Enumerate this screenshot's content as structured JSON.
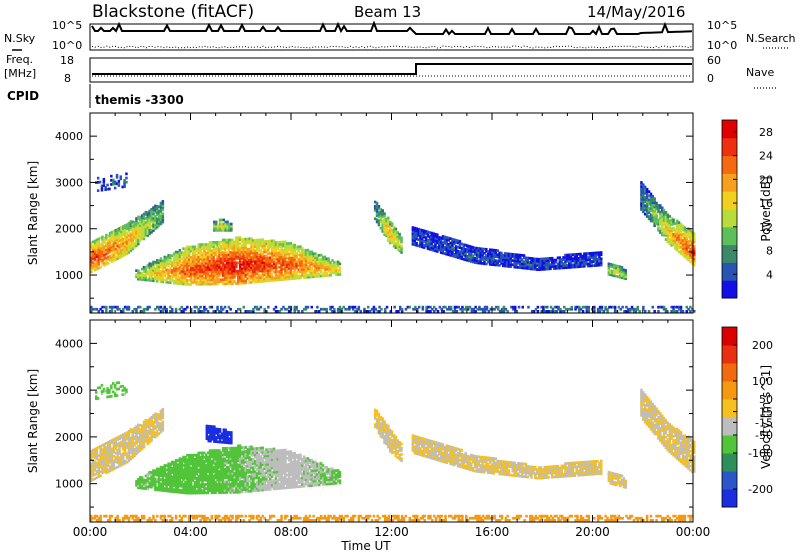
{
  "header": {
    "radar": "Blackstone (fitACF)",
    "beam": "Beam 13",
    "date": "14/May/2016"
  },
  "summary_panels": {
    "nsky_label": "N.Sky",
    "nsearch_label": "N.Search",
    "noise_ticks": [
      "10^5",
      "10^0"
    ],
    "freq_label": "Freq.",
    "freq_unit": "[MHz]",
    "freq_ticks": [
      "18",
      "8"
    ],
    "nave_label": "Nave",
    "nave_ticks": [
      "60",
      "0"
    ],
    "cpid_label": "CPID",
    "cpid_value": "themis -3300"
  },
  "colors": {
    "power_scale": [
      "#1010e6",
      "#2855b4",
      "#3a8a6a",
      "#5cbf5c",
      "#b8dc3c",
      "#f2d020",
      "#f7a020",
      "#f46a10",
      "#ee3010",
      "#e00000"
    ],
    "velocity_scale": [
      "#1a2ee0",
      "#2a56c8",
      "#2f8f5a",
      "#52c43a",
      "#bdbdbd",
      "#f5c020",
      "#f59a10",
      "#f26a10",
      "#e83010",
      "#d80000"
    ]
  },
  "chart_data": [
    {
      "type": "heatmap",
      "name": "power",
      "xlabel": "Time UT",
      "ylabel": "Slant Range [km]",
      "x_ticks": [
        "00:00",
        "04:00",
        "08:00",
        "12:00",
        "16:00",
        "20:00",
        "00:00"
      ],
      "xlim_hours": [
        0,
        24
      ],
      "y_ticks": [
        1000,
        2000,
        3000,
        4000
      ],
      "ylim_km": [
        180,
        4500
      ],
      "colorbar_label": "Power [dB]",
      "colorbar_ticks": [
        4,
        8,
        12,
        16,
        20,
        24,
        28
      ],
      "colorbar_range": [
        0,
        30
      ],
      "regions": [
        {
          "t0": 0.0,
          "t1": 2.9,
          "rlow": [
            1050,
            1450,
            2150
          ],
          "rhigh": [
            1700,
            2100,
            2600
          ],
          "level": [
            26,
            20,
            10
          ]
        },
        {
          "t0": 1.8,
          "t1": 9.9,
          "rlow": [
            900,
            780,
            800,
            900,
            1000
          ],
          "rhigh": [
            1100,
            1600,
            1800,
            1700,
            1250
          ],
          "level": [
            14,
            24,
            28,
            24,
            18
          ]
        },
        {
          "t0": 4.9,
          "t1": 5.6,
          "rlow": [
            1950,
            1950,
            1950
          ],
          "rhigh": [
            2150,
            2200,
            2100
          ],
          "level": [
            14,
            16,
            12
          ]
        },
        {
          "t0": 11.3,
          "t1": 12.4,
          "rlow": [
            2200,
            1700,
            1450
          ],
          "rhigh": [
            2600,
            2200,
            1800
          ],
          "level": [
            8,
            20,
            14
          ]
        },
        {
          "t0": 12.8,
          "t1": 20.3,
          "rlow": [
            1650,
            1250,
            1100,
            1200
          ],
          "rhigh": [
            2050,
            1600,
            1350,
            1500
          ],
          "level": [
            4,
            4,
            4,
            4
          ]
        },
        {
          "t0": 20.6,
          "t1": 21.3,
          "rlow": [
            1000,
            950,
            900
          ],
          "rhigh": [
            1250,
            1200,
            1100
          ],
          "level": [
            14,
            16,
            12
          ]
        },
        {
          "t0": 21.9,
          "t1": 24.0,
          "rlow": [
            2400,
            1700,
            1200
          ],
          "rhigh": [
            3000,
            2300,
            1900
          ],
          "level": [
            6,
            18,
            26
          ]
        },
        {
          "t0": 0.0,
          "t1": 24.0,
          "rlow": [
            200,
            200
          ],
          "rhigh": [
            330,
            330
          ],
          "level": [
            6,
            6
          ],
          "density": 0.45
        },
        {
          "t0": 0.2,
          "t1": 1.4,
          "rlow": [
            2800,
            2900
          ],
          "rhigh": [
            3100,
            3200
          ],
          "level": [
            4,
            4
          ],
          "density": 0.3
        }
      ]
    },
    {
      "type": "heatmap",
      "name": "velocity",
      "xlabel": "Time UT",
      "ylabel": "Slant Range [km]",
      "x_ticks": [
        "00:00",
        "04:00",
        "08:00",
        "12:00",
        "16:00",
        "20:00",
        "00:00"
      ],
      "xlim_hours": [
        0,
        24
      ],
      "y_ticks": [
        1000,
        2000,
        3000,
        4000
      ],
      "ylim_km": [
        180,
        4500
      ],
      "colorbar_label": "Velocity [m s^-1]",
      "colorbar_ticks": [
        200,
        100,
        50,
        15,
        -15,
        -50,
        -100,
        -200
      ],
      "colorbar_range": [
        -250,
        250
      ],
      "regions": [
        {
          "t0": 0.0,
          "t1": 2.9,
          "rlow": [
            1050,
            1450,
            2150
          ],
          "rhigh": [
            1700,
            2100,
            2600
          ],
          "level": [
            0,
            0,
            0
          ]
        },
        {
          "t0": 1.8,
          "t1": 9.9,
          "rlow": [
            900,
            780,
            800,
            900,
            1000
          ],
          "rhigh": [
            1100,
            1600,
            1800,
            1700,
            1250
          ],
          "level": [
            -60,
            -70,
            -60,
            -30,
            -60
          ]
        },
        {
          "t0": 4.6,
          "t1": 5.6,
          "rlow": [
            1900,
            1850
          ],
          "rhigh": [
            2250,
            2100
          ],
          "level": [
            -220,
            -220
          ]
        },
        {
          "t0": 11.3,
          "t1": 12.4,
          "rlow": [
            2200,
            1700,
            1450
          ],
          "rhigh": [
            2600,
            2200,
            1800
          ],
          "level": [
            0,
            0,
            0
          ]
        },
        {
          "t0": 12.8,
          "t1": 20.3,
          "rlow": [
            1650,
            1250,
            1100,
            1200
          ],
          "rhigh": [
            2050,
            1600,
            1350,
            1500
          ],
          "level": [
            0,
            0,
            0
          ]
        },
        {
          "t0": 20.6,
          "t1": 21.3,
          "rlow": [
            1000,
            950,
            900
          ],
          "rhigh": [
            1250,
            1200,
            1100
          ],
          "level": [
            0,
            0,
            0
          ]
        },
        {
          "t0": 21.9,
          "t1": 24.0,
          "rlow": [
            2400,
            1700,
            1200
          ],
          "rhigh": [
            3000,
            2300,
            1900
          ],
          "level": [
            0,
            0,
            0
          ]
        },
        {
          "t0": 0.0,
          "t1": 24.0,
          "rlow": [
            200,
            200
          ],
          "rhigh": [
            300,
            300
          ],
          "level": [
            70,
            70
          ],
          "density": 0.5
        },
        {
          "t0": 0.2,
          "t1": 1.4,
          "rlow": [
            2800,
            2900
          ],
          "rhigh": [
            3100,
            3200
          ],
          "level": [
            -60,
            -60
          ],
          "density": 0.3
        }
      ]
    }
  ]
}
